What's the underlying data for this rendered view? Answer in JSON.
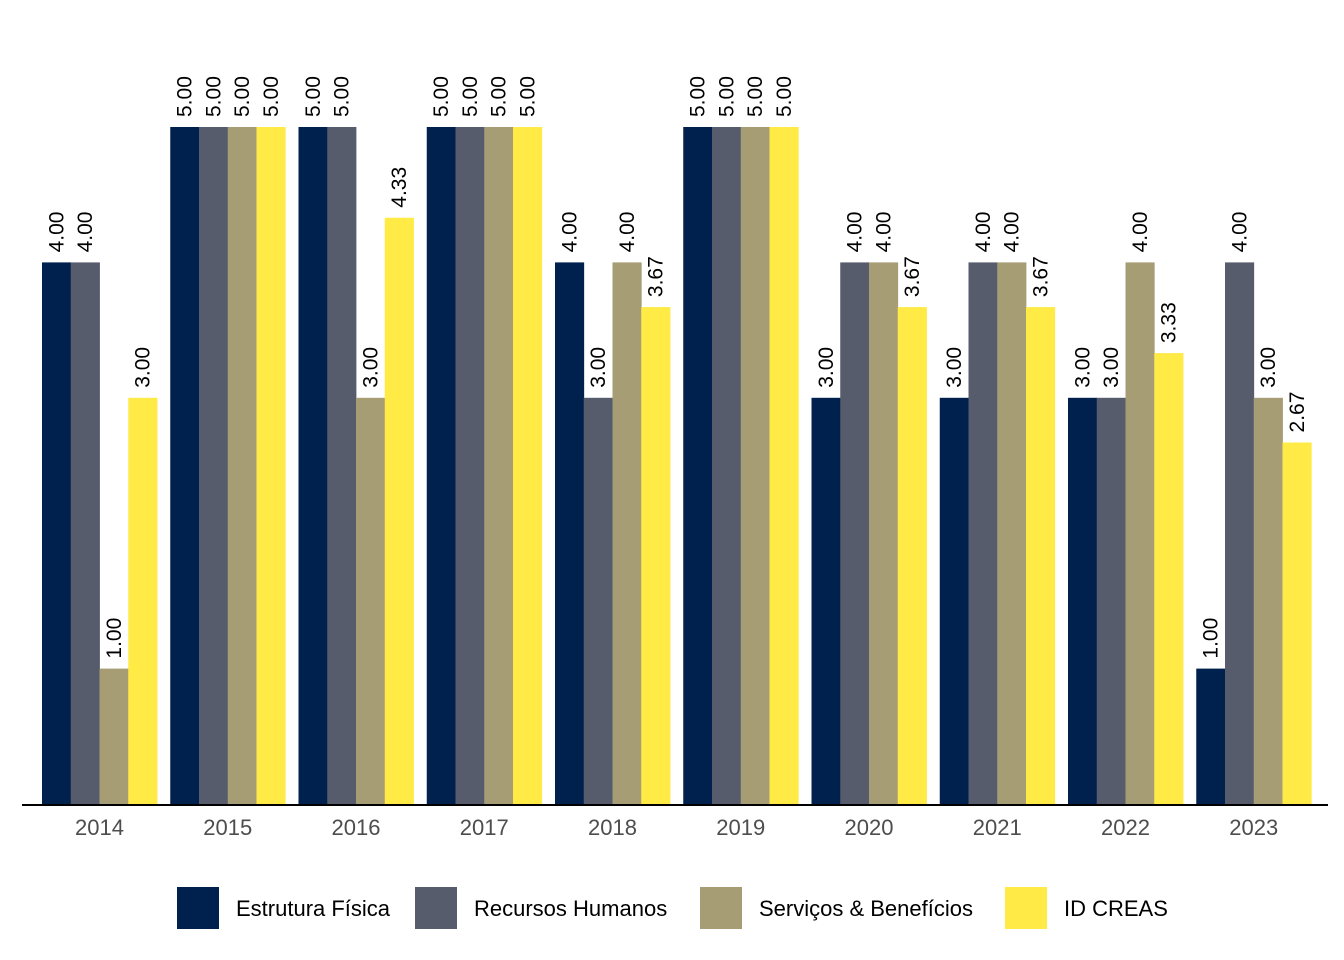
{
  "chart_data": {
    "type": "bar",
    "categories": [
      "2014",
      "2015",
      "2016",
      "2017",
      "2018",
      "2019",
      "2020",
      "2021",
      "2022",
      "2023"
    ],
    "series": [
      {
        "name": "Estrutura Física",
        "color": "#00204d",
        "values": [
          4,
          5,
          5,
          5,
          4,
          5,
          3,
          3,
          3,
          1
        ]
      },
      {
        "name": "Recursos Humanos",
        "color": "#575c6d",
        "values": [
          4,
          5,
          5,
          5,
          3,
          5,
          4,
          4,
          3,
          4
        ]
      },
      {
        "name": "Serviços & Benefícios",
        "color": "#a69d75",
        "values": [
          1,
          5,
          3,
          5,
          4,
          5,
          4,
          4,
          4,
          3
        ]
      },
      {
        "name": "ID CREAS",
        "color": "#ffea46",
        "values": [
          3,
          5,
          4.33,
          5,
          3.67,
          5,
          3.67,
          3.67,
          3.33,
          2.67
        ]
      }
    ],
    "data_labels": [
      [
        "4.00",
        "5.00",
        "5.00",
        "5.00",
        "4.00",
        "5.00",
        "3.00",
        "3.00",
        "3.00",
        "1.00"
      ],
      [
        "4.00",
        "5.00",
        "5.00",
        "5.00",
        "3.00",
        "5.00",
        "4.00",
        "4.00",
        "3.00",
        "4.00"
      ],
      [
        "1.00",
        "5.00",
        "3.00",
        "5.00",
        "4.00",
        "5.00",
        "4.00",
        "4.00",
        "4.00",
        "3.00"
      ],
      [
        "3.00",
        "5.00",
        "4.33",
        "5.00",
        "3.67",
        "5.00",
        "3.67",
        "3.67",
        "3.33",
        "2.67"
      ]
    ],
    "ylim": [
      0,
      5
    ],
    "grid": false,
    "legend_position": "bottom",
    "title": "",
    "xlabel": "",
    "ylabel": ""
  }
}
